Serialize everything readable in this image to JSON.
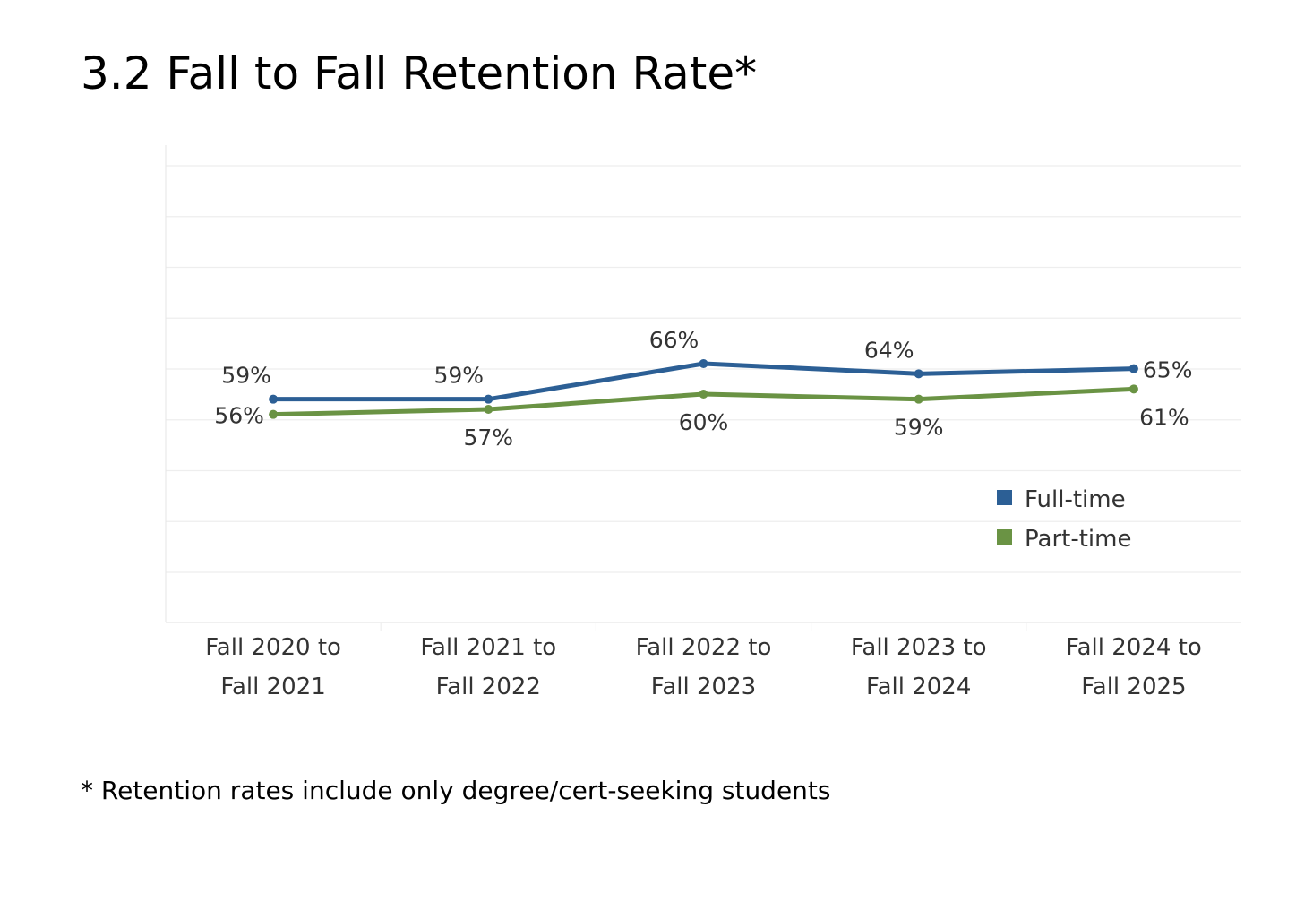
{
  "title": "3.2 Fall to Fall Retention Rate*",
  "footnote": "* Retention rates include only degree/cert-seeking students",
  "chart_data": {
    "type": "line",
    "categories": [
      [
        "Fall 2020 to",
        "Fall 2021"
      ],
      [
        "Fall 2021 to",
        "Fall 2022"
      ],
      [
        "Fall 2022 to",
        "Fall 2023"
      ],
      [
        "Fall 2023 to",
        "Fall 2024"
      ],
      [
        "Fall 2024 to",
        "Fall 2025"
      ]
    ],
    "series": [
      {
        "name": "Full-time",
        "color": "#2c5f95",
        "values": [
          59,
          59,
          66,
          64,
          65
        ],
        "labels": [
          "59%",
          "59%",
          "66%",
          "64%",
          "65%"
        ]
      },
      {
        "name": "Part-time",
        "color": "#6a9344",
        "values": [
          56,
          57,
          60,
          59,
          61
        ],
        "labels": [
          "56%",
          "57%",
          "60%",
          "59%",
          "61%"
        ]
      }
    ],
    "ylim": [
      15,
      105
    ],
    "grid": true,
    "y_tick_labels_shown": false,
    "legend_position": "inside-right"
  }
}
